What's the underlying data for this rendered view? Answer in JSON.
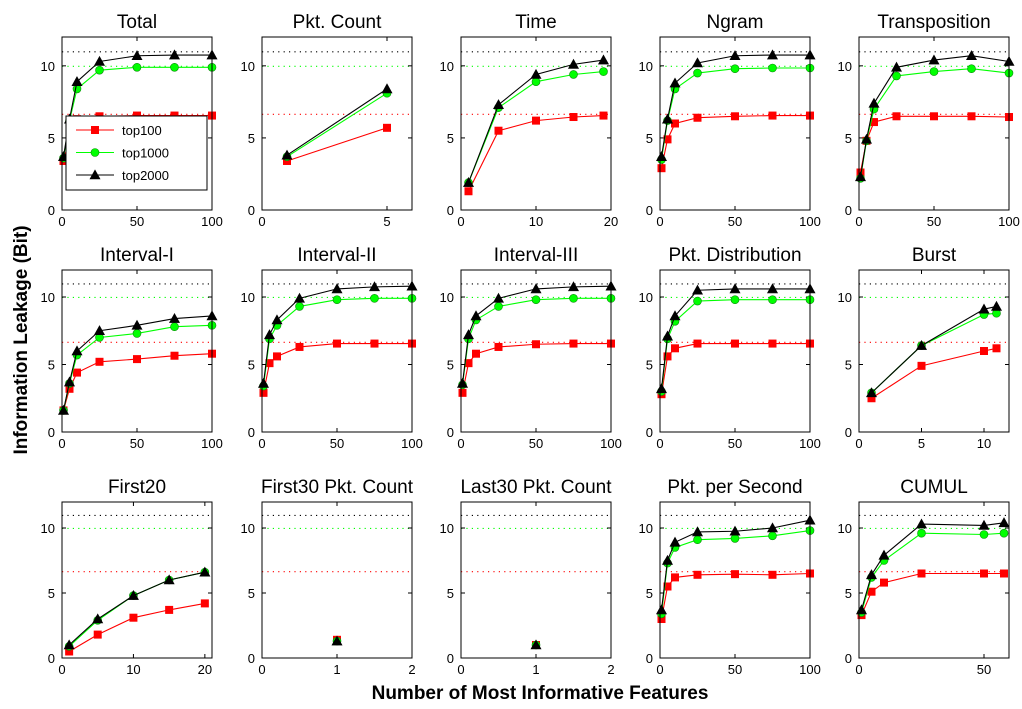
{
  "figure": {
    "ylabel": "Information Leakage (Bit)",
    "xlabel": "Number of Most Informative Features"
  },
  "legend": [
    {
      "name": "top100",
      "color": "#ff0000",
      "marker": "square"
    },
    {
      "name": "top1000",
      "color": "#00ff00",
      "marker": "circle"
    },
    {
      "name": "top2000",
      "color": "#000000",
      "marker": "triangle"
    }
  ],
  "colors": {
    "top100": "#ff0000",
    "top1000": "#00ff00",
    "top2000": "#000000"
  },
  "chart_data": [
    {
      "type": "line",
      "title": "Total",
      "xlim": [
        0,
        100
      ],
      "xticks": [
        0,
        50,
        100
      ],
      "ylim": [
        0,
        12
      ],
      "yticks": [
        0,
        5,
        10
      ],
      "ref_lines": [
        6.64,
        9.97,
        10.97
      ],
      "series": [
        {
          "name": "top100",
          "x": [
            1,
            5,
            10,
            25,
            50,
            75,
            100
          ],
          "values": [
            3.4,
            5.0,
            6.3,
            6.5,
            6.55,
            6.55,
            6.55
          ]
        },
        {
          "name": "top1000",
          "x": [
            1,
            5,
            10,
            25,
            50,
            75,
            100
          ],
          "values": [
            3.6,
            6.2,
            8.4,
            9.7,
            9.9,
            9.9,
            9.9
          ]
        },
        {
          "name": "top2000",
          "x": [
            1,
            5,
            10,
            25,
            50,
            75,
            100
          ],
          "values": [
            3.7,
            6.3,
            8.9,
            10.3,
            10.7,
            10.75,
            10.75
          ]
        }
      ]
    },
    {
      "type": "line",
      "title": "Pkt. Count",
      "xlim": [
        0,
        6
      ],
      "xticks": [
        0,
        5
      ],
      "ylim": [
        0,
        12
      ],
      "yticks": [
        0,
        5,
        10
      ],
      "ref_lines": [
        6.64,
        9.97,
        10.97
      ],
      "series": [
        {
          "name": "top100",
          "x": [
            1,
            5
          ],
          "values": [
            3.4,
            5.7
          ]
        },
        {
          "name": "top1000",
          "x": [
            1,
            5
          ],
          "values": [
            3.7,
            8.1
          ]
        },
        {
          "name": "top2000",
          "x": [
            1,
            5
          ],
          "values": [
            3.8,
            8.4
          ]
        }
      ]
    },
    {
      "type": "line",
      "title": "Time",
      "xlim": [
        0,
        20
      ],
      "xticks": [
        0,
        10,
        20
      ],
      "ylim": [
        0,
        12
      ],
      "yticks": [
        0,
        5,
        10
      ],
      "ref_lines": [
        6.64,
        9.97,
        10.97
      ],
      "series": [
        {
          "name": "top100",
          "x": [
            1,
            5,
            10,
            15,
            19
          ],
          "values": [
            1.3,
            5.5,
            6.2,
            6.45,
            6.55
          ]
        },
        {
          "name": "top1000",
          "x": [
            1,
            5,
            10,
            15,
            19
          ],
          "values": [
            1.9,
            7.1,
            8.9,
            9.4,
            9.6
          ]
        },
        {
          "name": "top2000",
          "x": [
            1,
            5,
            10,
            15,
            19
          ],
          "values": [
            1.9,
            7.3,
            9.4,
            10.1,
            10.4
          ]
        }
      ]
    },
    {
      "type": "line",
      "title": "Ngram",
      "xlim": [
        0,
        100
      ],
      "xticks": [
        0,
        50,
        100
      ],
      "ylim": [
        0,
        12
      ],
      "yticks": [
        0,
        5,
        10
      ],
      "ref_lines": [
        6.64,
        9.97,
        10.97
      ],
      "series": [
        {
          "name": "top100",
          "x": [
            1,
            5,
            10,
            25,
            50,
            75,
            100
          ],
          "values": [
            2.9,
            4.9,
            6.0,
            6.4,
            6.5,
            6.55,
            6.55
          ]
        },
        {
          "name": "top1000",
          "x": [
            1,
            5,
            10,
            25,
            50,
            75,
            100
          ],
          "values": [
            3.5,
            6.2,
            8.4,
            9.5,
            9.8,
            9.85,
            9.85
          ]
        },
        {
          "name": "top2000",
          "x": [
            1,
            5,
            10,
            25,
            50,
            75,
            100
          ],
          "values": [
            3.7,
            6.3,
            8.8,
            10.2,
            10.7,
            10.75,
            10.75
          ]
        }
      ]
    },
    {
      "type": "line",
      "title": "Transposition",
      "xlim": [
        0,
        100
      ],
      "xticks": [
        0,
        50,
        100
      ],
      "ylim": [
        0,
        12
      ],
      "yticks": [
        0,
        5,
        10
      ],
      "ref_lines": [
        6.64,
        9.97,
        10.97
      ],
      "series": [
        {
          "name": "top100",
          "x": [
            1,
            5,
            10,
            25,
            50,
            75,
            100
          ],
          "values": [
            2.6,
            4.8,
            6.1,
            6.5,
            6.5,
            6.5,
            6.45
          ]
        },
        {
          "name": "top1000",
          "x": [
            1,
            5,
            10,
            25,
            50,
            75,
            100
          ],
          "values": [
            2.2,
            4.8,
            7.0,
            9.3,
            9.6,
            9.8,
            9.5
          ]
        },
        {
          "name": "top2000",
          "x": [
            1,
            5,
            10,
            25,
            50,
            75,
            100
          ],
          "values": [
            2.3,
            4.9,
            7.4,
            9.9,
            10.4,
            10.7,
            10.3
          ]
        }
      ]
    },
    {
      "type": "line",
      "title": "Interval-I",
      "xlim": [
        0,
        100
      ],
      "xticks": [
        0,
        50,
        100
      ],
      "ylim": [
        0,
        12
      ],
      "yticks": [
        0,
        5,
        10
      ],
      "ref_lines": [
        6.64,
        9.97,
        10.97
      ],
      "series": [
        {
          "name": "top100",
          "x": [
            1,
            5,
            10,
            25,
            50,
            75,
            100
          ],
          "values": [
            1.6,
            3.2,
            4.4,
            5.2,
            5.4,
            5.65,
            5.8
          ]
        },
        {
          "name": "top1000",
          "x": [
            1,
            5,
            10,
            25,
            50,
            75,
            100
          ],
          "values": [
            1.6,
            3.6,
            5.7,
            7.0,
            7.3,
            7.8,
            7.9
          ]
        },
        {
          "name": "top2000",
          "x": [
            1,
            5,
            10,
            25,
            50,
            75,
            100
          ],
          "values": [
            1.6,
            3.7,
            6.0,
            7.5,
            7.9,
            8.4,
            8.6
          ]
        }
      ]
    },
    {
      "type": "line",
      "title": "Interval-II",
      "xlim": [
        0,
        100
      ],
      "xticks": [
        0,
        50,
        100
      ],
      "ylim": [
        0,
        12
      ],
      "yticks": [
        0,
        5,
        10
      ],
      "ref_lines": [
        6.64,
        9.97,
        10.97
      ],
      "series": [
        {
          "name": "top100",
          "x": [
            1,
            5,
            10,
            25,
            50,
            75,
            100
          ],
          "values": [
            2.9,
            5.1,
            5.6,
            6.3,
            6.55,
            6.55,
            6.55
          ]
        },
        {
          "name": "top1000",
          "x": [
            1,
            5,
            10,
            25,
            50,
            75,
            100
          ],
          "values": [
            3.4,
            6.9,
            7.9,
            9.3,
            9.8,
            9.9,
            9.9
          ]
        },
        {
          "name": "top2000",
          "x": [
            1,
            5,
            10,
            25,
            50,
            75,
            100
          ],
          "values": [
            3.6,
            7.2,
            8.3,
            9.9,
            10.6,
            10.75,
            10.8
          ]
        }
      ]
    },
    {
      "type": "line",
      "title": "Interval-III",
      "xlim": [
        0,
        100
      ],
      "xticks": [
        0,
        50,
        100
      ],
      "ylim": [
        0,
        12
      ],
      "yticks": [
        0,
        5,
        10
      ],
      "ref_lines": [
        6.64,
        9.97,
        10.97
      ],
      "series": [
        {
          "name": "top100",
          "x": [
            1,
            5,
            10,
            25,
            50,
            75,
            100
          ],
          "values": [
            2.9,
            5.1,
            5.8,
            6.3,
            6.5,
            6.55,
            6.55
          ]
        },
        {
          "name": "top1000",
          "x": [
            1,
            5,
            10,
            25,
            50,
            75,
            100
          ],
          "values": [
            3.5,
            6.9,
            8.3,
            9.3,
            9.8,
            9.9,
            9.9
          ]
        },
        {
          "name": "top2000",
          "x": [
            1,
            5,
            10,
            25,
            50,
            75,
            100
          ],
          "values": [
            3.6,
            7.2,
            8.6,
            9.9,
            10.6,
            10.75,
            10.8
          ]
        }
      ]
    },
    {
      "type": "line",
      "title": "Pkt. Distribution",
      "xlim": [
        0,
        100
      ],
      "xticks": [
        0,
        50,
        100
      ],
      "ylim": [
        0,
        12
      ],
      "yticks": [
        0,
        5,
        10
      ],
      "ref_lines": [
        6.64,
        9.97,
        10.97
      ],
      "series": [
        {
          "name": "top100",
          "x": [
            1,
            5,
            10,
            25,
            50,
            75,
            100
          ],
          "values": [
            2.8,
            5.6,
            6.2,
            6.55,
            6.55,
            6.55,
            6.55
          ]
        },
        {
          "name": "top1000",
          "x": [
            1,
            5,
            10,
            25,
            50,
            75,
            100
          ],
          "values": [
            3.0,
            6.9,
            8.2,
            9.7,
            9.8,
            9.8,
            9.8
          ]
        },
        {
          "name": "top2000",
          "x": [
            1,
            5,
            10,
            25,
            50,
            75,
            100
          ],
          "values": [
            3.2,
            7.1,
            8.6,
            10.5,
            10.6,
            10.6,
            10.6
          ]
        }
      ]
    },
    {
      "type": "line",
      "title": "Burst",
      "xlim": [
        0,
        12
      ],
      "xticks": [
        0,
        5,
        10
      ],
      "ylim": [
        0,
        12
      ],
      "yticks": [
        0,
        5,
        10
      ],
      "ref_lines": [
        6.64,
        9.97,
        10.97
      ],
      "series": [
        {
          "name": "top100",
          "x": [
            1,
            5,
            10,
            11
          ],
          "values": [
            2.5,
            4.9,
            6.0,
            6.2
          ]
        },
        {
          "name": "top1000",
          "x": [
            1,
            5,
            10,
            11
          ],
          "values": [
            2.9,
            6.4,
            8.7,
            8.8
          ]
        },
        {
          "name": "top2000",
          "x": [
            1,
            5,
            10,
            11
          ],
          "values": [
            2.9,
            6.4,
            9.1,
            9.3
          ]
        }
      ]
    },
    {
      "type": "line",
      "title": "First20",
      "xlim": [
        0,
        21
      ],
      "xticks": [
        0,
        10,
        20
      ],
      "ylim": [
        0,
        12
      ],
      "yticks": [
        0,
        5,
        10
      ],
      "ref_lines": [
        6.64,
        9.97,
        10.97
      ],
      "series": [
        {
          "name": "top100",
          "x": [
            1,
            5,
            10,
            15,
            20
          ],
          "values": [
            0.5,
            1.8,
            3.1,
            3.7,
            4.2
          ]
        },
        {
          "name": "top1000",
          "x": [
            1,
            5,
            10,
            15,
            20
          ],
          "values": [
            0.9,
            2.9,
            4.8,
            6.0,
            6.6
          ]
        },
        {
          "name": "top2000",
          "x": [
            1,
            5,
            10,
            15,
            20
          ],
          "values": [
            1.0,
            3.0,
            4.8,
            6.0,
            6.6
          ]
        }
      ]
    },
    {
      "type": "line",
      "title": "First30 Pkt. Count",
      "xlim": [
        0,
        2
      ],
      "xticks": [
        0,
        1,
        2
      ],
      "ylim": [
        0,
        12
      ],
      "yticks": [
        0,
        5,
        10
      ],
      "ref_lines": [
        6.64,
        9.97,
        10.97
      ],
      "series": [
        {
          "name": "top100",
          "x": [
            1
          ],
          "values": [
            1.4
          ]
        },
        {
          "name": "top1000",
          "x": [
            1
          ],
          "values": [
            1.3
          ]
        },
        {
          "name": "top2000",
          "x": [
            1
          ],
          "values": [
            1.3
          ]
        }
      ]
    },
    {
      "type": "line",
      "title": "Last30 Pkt. Count",
      "xlim": [
        0,
        2
      ],
      "xticks": [
        0,
        1,
        2
      ],
      "ylim": [
        0,
        12
      ],
      "yticks": [
        0,
        5,
        10
      ],
      "ref_lines": [
        6.64,
        9.97,
        10.97
      ],
      "series": [
        {
          "name": "top100",
          "x": [
            1
          ],
          "values": [
            1.0
          ]
        },
        {
          "name": "top1000",
          "x": [
            1
          ],
          "values": [
            1.0
          ]
        },
        {
          "name": "top2000",
          "x": [
            1
          ],
          "values": [
            1.0
          ]
        }
      ]
    },
    {
      "type": "line",
      "title": "Pkt. per Second",
      "xlim": [
        0,
        100
      ],
      "xticks": [
        0,
        50,
        100
      ],
      "ylim": [
        0,
        12
      ],
      "yticks": [
        0,
        5,
        10
      ],
      "ref_lines": [
        6.64,
        9.97,
        10.97
      ],
      "series": [
        {
          "name": "top100",
          "x": [
            1,
            5,
            10,
            25,
            50,
            75,
            100
          ],
          "values": [
            3.0,
            5.5,
            6.2,
            6.4,
            6.45,
            6.4,
            6.5
          ]
        },
        {
          "name": "top1000",
          "x": [
            1,
            5,
            10,
            25,
            50,
            75,
            100
          ],
          "values": [
            3.4,
            7.3,
            8.5,
            9.1,
            9.2,
            9.4,
            9.8
          ]
        },
        {
          "name": "top2000",
          "x": [
            1,
            5,
            10,
            25,
            50,
            75,
            100
          ],
          "values": [
            3.7,
            7.5,
            8.9,
            9.7,
            9.75,
            10.0,
            10.6
          ]
        }
      ]
    },
    {
      "type": "line",
      "title": "CUMUL",
      "xlim": [
        0,
        60
      ],
      "xticks": [
        0,
        50
      ],
      "ylim": [
        0,
        12
      ],
      "yticks": [
        0,
        5,
        10
      ],
      "ref_lines": [
        6.64,
        9.97,
        10.97
      ],
      "series": [
        {
          "name": "top100",
          "x": [
            1,
            5,
            10,
            25,
            50,
            58
          ],
          "values": [
            3.3,
            5.1,
            5.8,
            6.5,
            6.5,
            6.5
          ]
        },
        {
          "name": "top1000",
          "x": [
            1,
            5,
            10,
            25,
            50,
            58
          ],
          "values": [
            3.5,
            6.2,
            7.5,
            9.6,
            9.5,
            9.6
          ]
        },
        {
          "name": "top2000",
          "x": [
            1,
            5,
            10,
            25,
            50,
            58
          ],
          "values": [
            3.7,
            6.4,
            7.9,
            10.3,
            10.2,
            10.4
          ]
        }
      ]
    }
  ]
}
